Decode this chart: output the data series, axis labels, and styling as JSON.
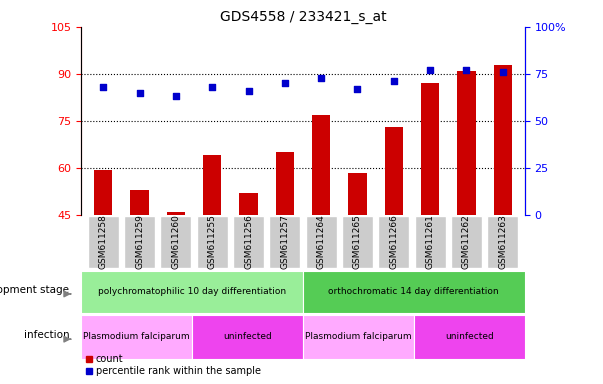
{
  "title": "GDS4558 / 233421_s_at",
  "samples": [
    "GSM611258",
    "GSM611259",
    "GSM611260",
    "GSM611255",
    "GSM611256",
    "GSM611257",
    "GSM611264",
    "GSM611265",
    "GSM611266",
    "GSM611261",
    "GSM611262",
    "GSM611263"
  ],
  "counts": [
    59.5,
    53.0,
    46.0,
    64.0,
    52.0,
    65.0,
    77.0,
    58.5,
    73.0,
    87.0,
    91.0,
    93.0
  ],
  "percentiles": [
    68,
    65,
    63,
    68,
    66,
    70,
    73,
    67,
    71,
    77,
    77,
    76
  ],
  "left_ylim": [
    45,
    105
  ],
  "left_yticks": [
    45,
    60,
    75,
    90,
    105
  ],
  "right_ylim": [
    0,
    100
  ],
  "right_yticks": [
    0,
    25,
    50,
    75,
    100
  ],
  "right_yticklabels": [
    "0",
    "25",
    "50",
    "75",
    "100%"
  ],
  "bar_color": "#cc0000",
  "dot_color": "#0000cc",
  "bar_width": 0.5,
  "grid_lines": [
    60,
    75,
    90
  ],
  "dev_stage_row": {
    "label": "development stage",
    "groups": [
      {
        "label": "polychromatophilic 10 day differentiation",
        "start": 0,
        "end": 6,
        "color": "#99ee99"
      },
      {
        "label": "orthochromatic 14 day differentiation",
        "start": 6,
        "end": 12,
        "color": "#55cc55"
      }
    ]
  },
  "infection_row": {
    "label": "infection",
    "groups": [
      {
        "label": "Plasmodium falciparum",
        "start": 0,
        "end": 3,
        "color": "#ffaaff"
      },
      {
        "label": "uninfected",
        "start": 3,
        "end": 6,
        "color": "#ee44ee"
      },
      {
        "label": "Plasmodium falciparum",
        "start": 6,
        "end": 9,
        "color": "#ffaaff"
      },
      {
        "label": "uninfected",
        "start": 9,
        "end": 12,
        "color": "#ee44ee"
      }
    ]
  },
  "legend_items": [
    {
      "label": "count",
      "color": "#cc0000",
      "marker": "s"
    },
    {
      "label": "percentile rank within the sample",
      "color": "#0000cc",
      "marker": "s"
    }
  ],
  "tick_bg_color": "#cccccc",
  "left_axis_color": "red",
  "right_axis_color": "blue",
  "title_fontsize": 10
}
